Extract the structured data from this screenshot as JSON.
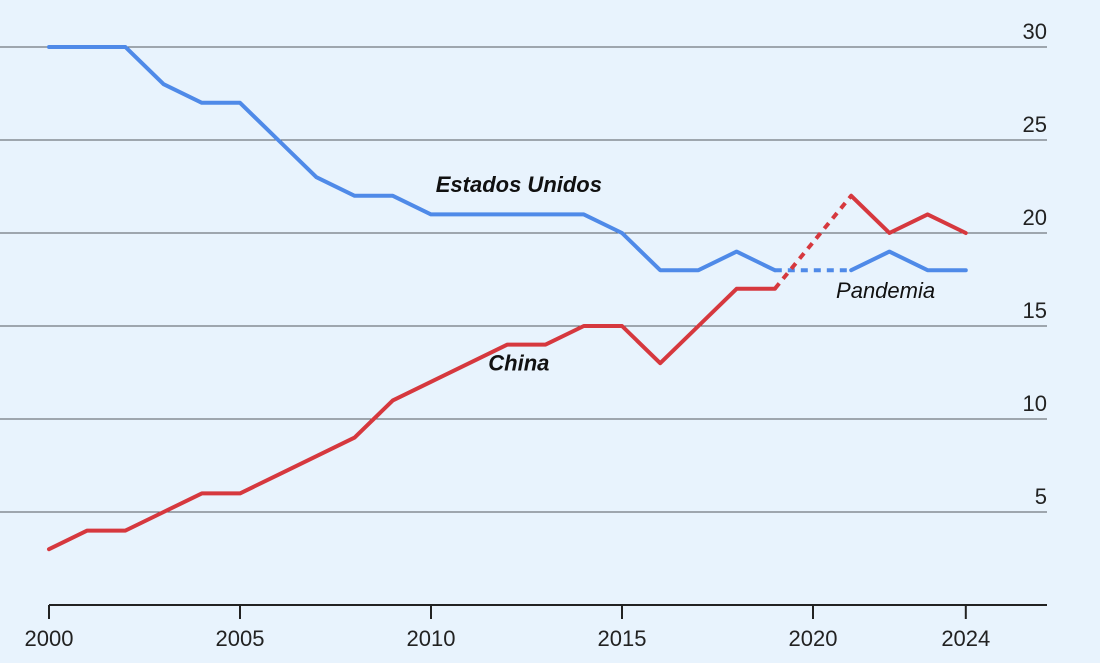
{
  "chart_data": {
    "type": "line",
    "title": "",
    "xlabel": "",
    "ylabel": "",
    "xlim": [
      2000,
      2026
    ],
    "ylim": [
      0,
      30
    ],
    "x_ticks": [
      2000,
      2005,
      2010,
      2015,
      2020,
      2024
    ],
    "y_ticks": [
      5,
      10,
      15,
      20,
      25,
      30
    ],
    "grid": true,
    "series": [
      {
        "name": "Estados Unidos",
        "color": "#4f8ae8",
        "x": [
          2000,
          2001,
          2002,
          2003,
          2004,
          2005,
          2006,
          2007,
          2008,
          2009,
          2010,
          2011,
          2012,
          2013,
          2014,
          2015,
          2016,
          2017,
          2018,
          2019,
          2020,
          2021,
          2022,
          2023,
          2024
        ],
        "y": [
          30,
          30,
          30,
          28,
          27,
          27,
          25,
          23,
          22,
          22,
          21,
          21,
          21,
          21,
          21,
          20,
          18,
          18,
          19,
          18,
          18,
          18,
          19,
          18,
          18
        ],
        "dashed_segment": [
          2019,
          2021
        ]
      },
      {
        "name": "China",
        "color": "#d6383e",
        "x": [
          2000,
          2001,
          2002,
          2003,
          2004,
          2005,
          2006,
          2007,
          2008,
          2009,
          2010,
          2011,
          2012,
          2013,
          2014,
          2015,
          2016,
          2017,
          2018,
          2019,
          2021,
          2022,
          2023,
          2024
        ],
        "y": [
          3,
          4,
          4,
          5,
          6,
          6,
          7,
          8,
          9,
          11,
          12,
          13,
          14,
          14,
          15,
          15,
          13,
          15,
          17,
          17,
          22,
          20,
          21,
          20
        ],
        "dashed_segment": [
          2019,
          2021
        ]
      }
    ],
    "annotations": [
      {
        "text": "Estados Unidos",
        "x": 2012.3,
        "y": 22.2,
        "style": "bold"
      },
      {
        "text": "China",
        "x": 2012.3,
        "y": 12.6,
        "style": "bold"
      },
      {
        "text": "Pandemia",
        "x": 2021.9,
        "y": 16.5,
        "style": "italic"
      }
    ]
  }
}
